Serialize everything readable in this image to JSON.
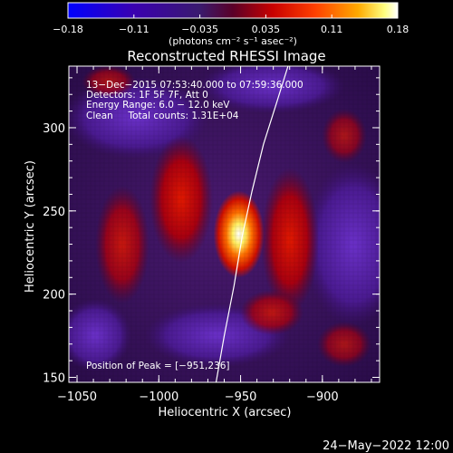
{
  "chart_data": {
    "type": "heatmap",
    "title": "Reconstructed RHESSI Image",
    "colorbar": {
      "ticks": [
        "−0.18",
        "−0.11",
        "−0.035",
        "0.035",
        "0.11",
        "0.18"
      ],
      "range": [
        -0.18,
        0.18
      ],
      "unit_label": "(photons cm⁻² s⁻¹ asec⁻²)",
      "colormap": [
        "#0000ff",
        "#3a00b0",
        "#3a1a6e",
        "#5a0028",
        "#c80000",
        "#ff4000",
        "#ffaa00",
        "#ffff80",
        "#ffffff"
      ]
    },
    "annotations": [
      "13−Dec−2015 07:53:40.000 to 07:59:36.000",
      "Detectors: 1F 5F 7F, Att 0",
      "Energy Range: 6.0 − 12.0 keV",
      "Clean     Total counts: 1.31E+04"
    ],
    "peak_label": "Position of Peak = [−951,236]",
    "peak": [
      -951,
      236
    ],
    "xlabel": "Heliocentric X (arcsec)",
    "ylabel": "Heliocentric Y (arcsec)",
    "xlim": [
      -1055,
      -865
    ],
    "ylim": [
      147,
      337
    ],
    "xticks": [
      {
        "v": -1050,
        "label": "−1050"
      },
      {
        "v": -1000,
        "label": "−1000"
      },
      {
        "v": -950,
        "label": "−950"
      },
      {
        "v": -900,
        "label": "−900"
      }
    ],
    "yticks": [
      {
        "v": 150,
        "label": "150"
      },
      {
        "v": 200,
        "label": "200"
      },
      {
        "v": 250,
        "label": "250"
      },
      {
        "v": 300,
        "label": "300"
      }
    ],
    "limb_curve": [
      [
        -965,
        147
      ],
      [
        -960,
        175
      ],
      [
        -954,
        205
      ],
      [
        -949,
        235
      ],
      [
        -943,
        262
      ],
      [
        -936,
        290
      ],
      [
        -928,
        315
      ],
      [
        -921,
        337
      ]
    ],
    "footer": "24−May−2022 12:00"
  }
}
